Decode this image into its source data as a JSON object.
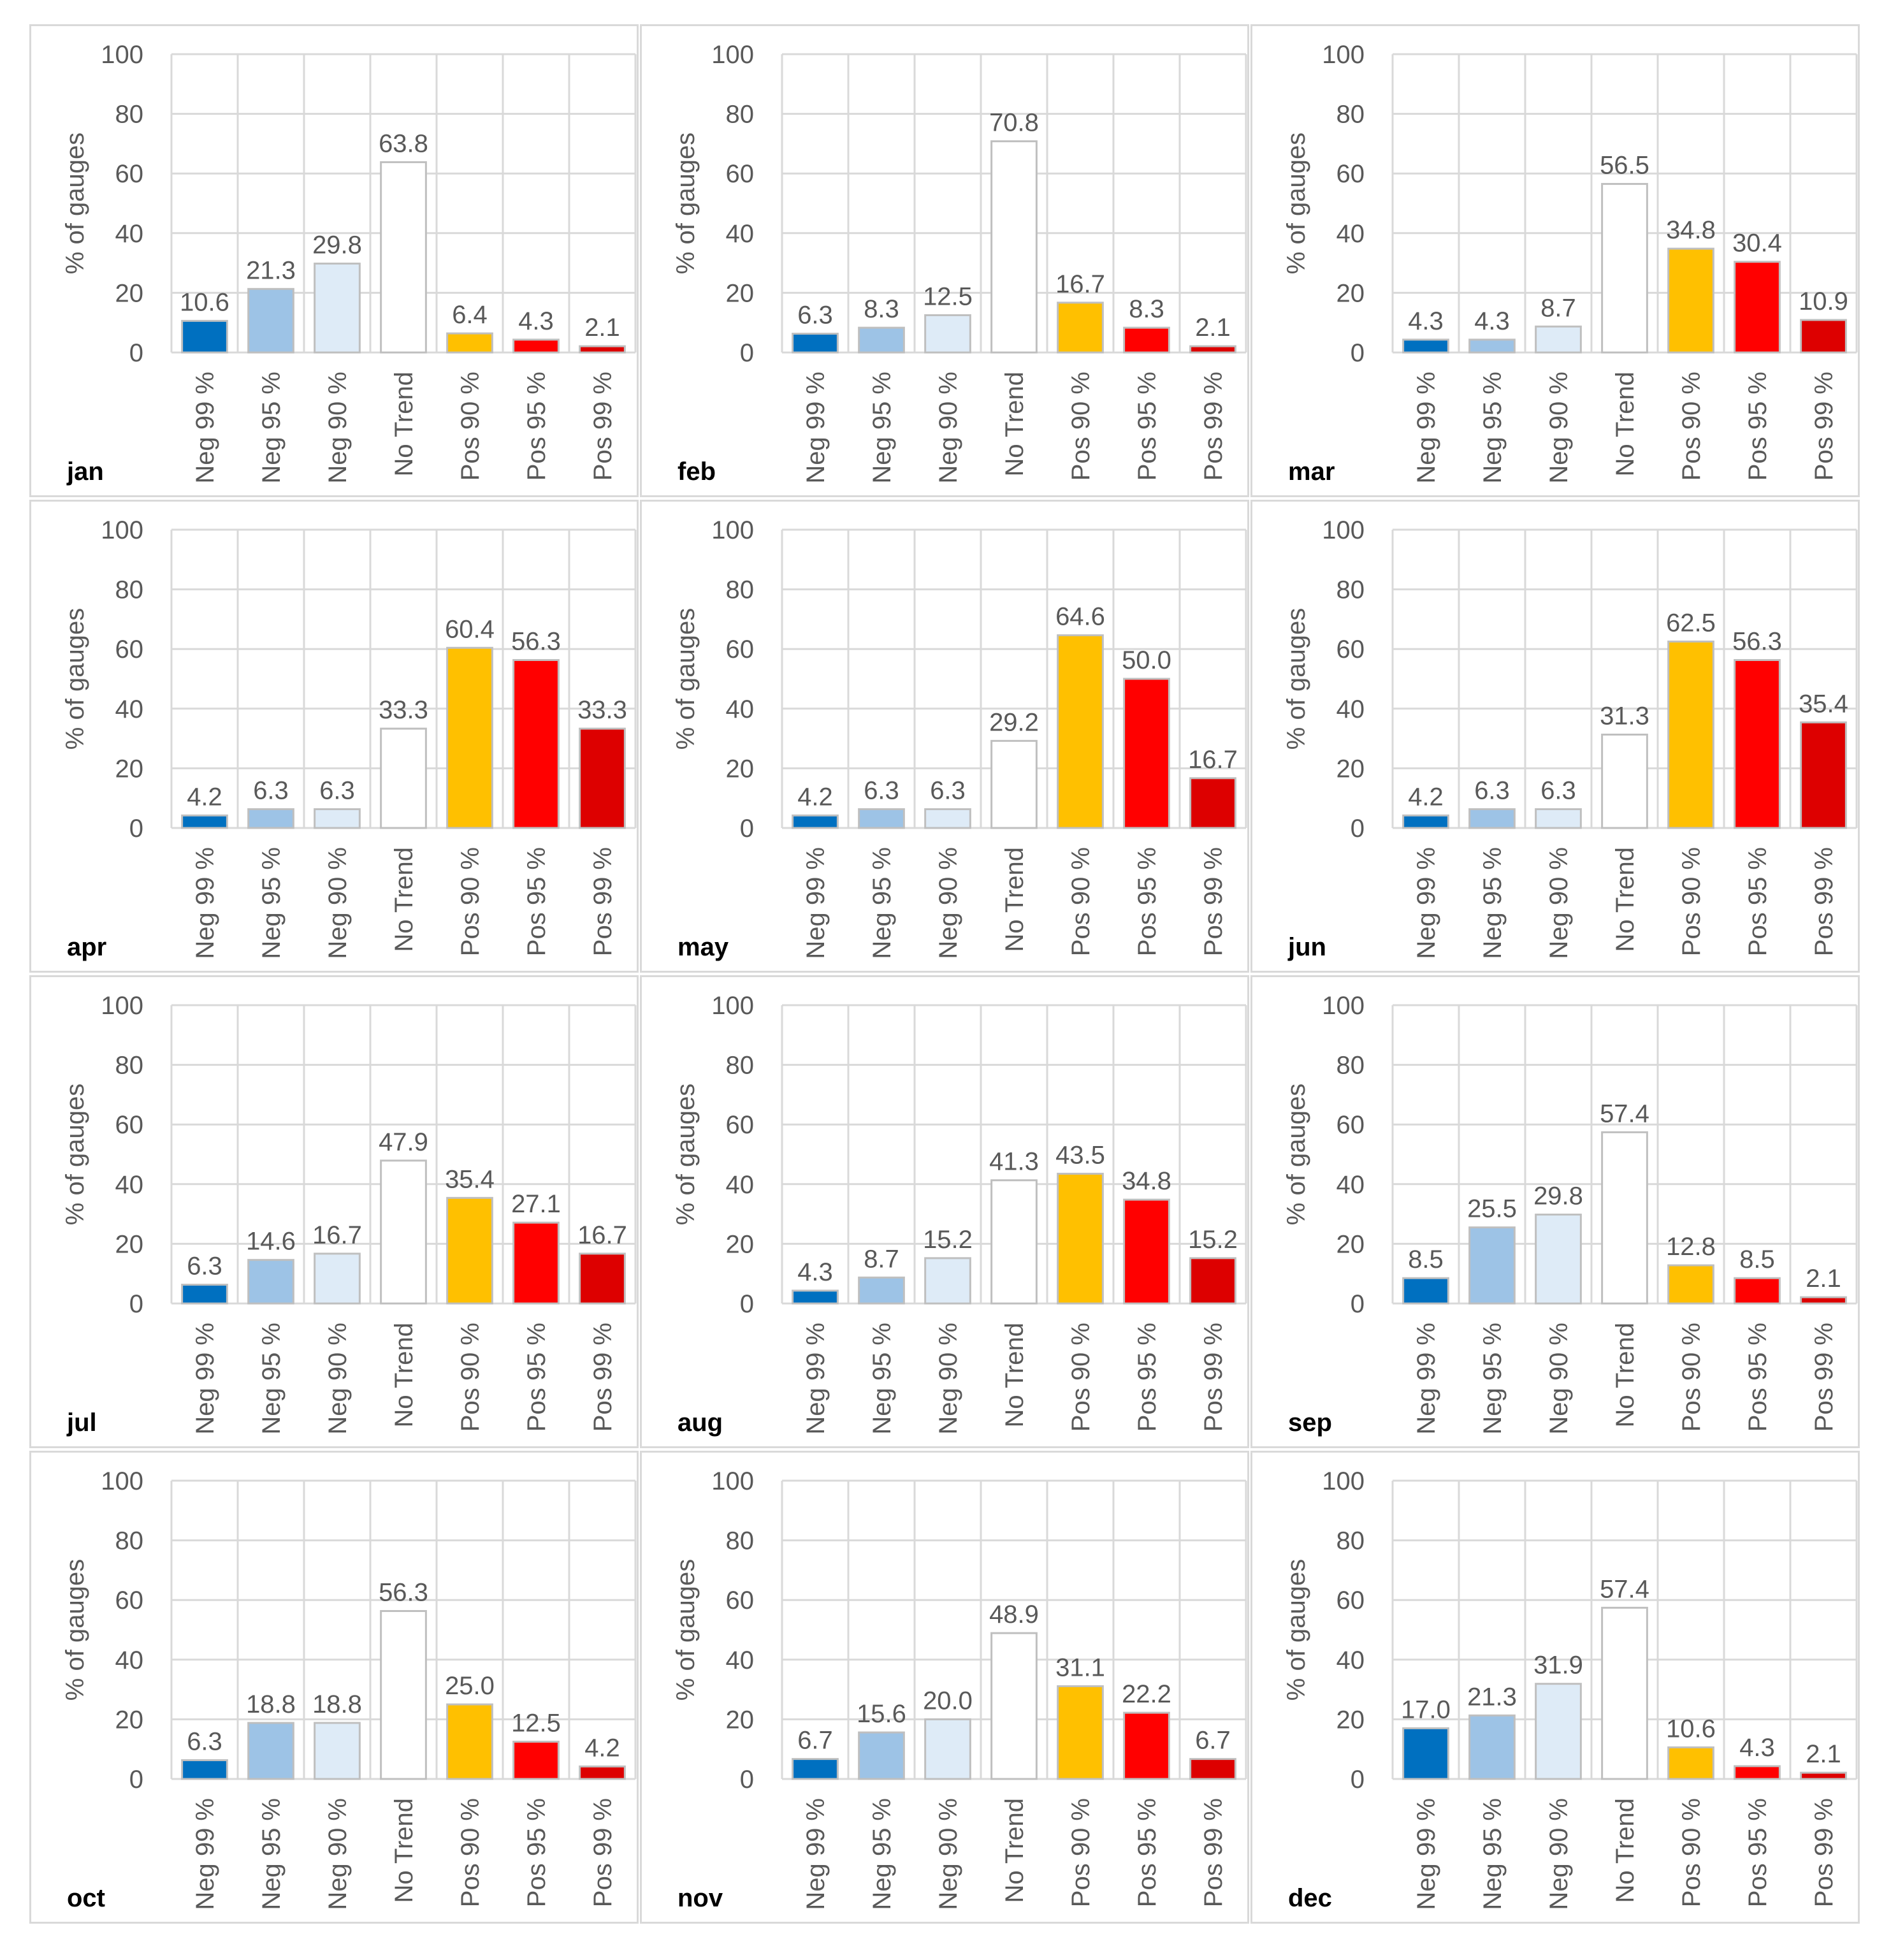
{
  "colors": {
    "Neg 99 %": "#0070c0",
    "Neg 95 %": "#9dc3e6",
    "Neg 90 %": "#deebf7",
    "No Trend": "#ffffff",
    "Pos 90 %": "#ffc000",
    "Pos 95 %": "#ff0000",
    "Pos 99 %": "#dd0000",
    "grid": "#d9d9d9",
    "bar_outline": "#bfbfbf",
    "text": "#595959"
  },
  "chart_data": [
    {
      "type": "bar",
      "title": "jan",
      "categories": [
        "Neg 99 %",
        "Neg 95 %",
        "Neg 90 %",
        "No Trend",
        "Pos 90 %",
        "Pos 95 %",
        "Pos 99 %"
      ],
      "values": [
        10.6,
        21.3,
        29.8,
        63.8,
        6.4,
        4.3,
        2.1
      ],
      "value_labels": [
        "10.6",
        "21.3",
        "29.8",
        "63.8",
        "6.4",
        "4.3",
        "2.1"
      ],
      "xlabel": "",
      "ylabel": "% of gauges",
      "ylim": [
        0,
        100
      ],
      "yticks": [
        "0",
        "20",
        "40",
        "60",
        "80",
        "100"
      ],
      "grid": true
    },
    {
      "type": "bar",
      "title": "feb",
      "categories": [
        "Neg 99 %",
        "Neg 95 %",
        "Neg 90 %",
        "No Trend",
        "Pos 90 %",
        "Pos 95 %",
        "Pos 99 %"
      ],
      "values": [
        6.3,
        8.3,
        12.5,
        70.8,
        16.7,
        8.3,
        2.1
      ],
      "value_labels": [
        "6.3",
        "8.3",
        "12.5",
        "70.8",
        "16.7",
        "8.3",
        "2.1"
      ],
      "xlabel": "",
      "ylabel": "% of gauges",
      "ylim": [
        0,
        100
      ],
      "yticks": [
        "0",
        "20",
        "40",
        "60",
        "80",
        "100"
      ],
      "grid": true
    },
    {
      "type": "bar",
      "title": "mar",
      "categories": [
        "Neg 99 %",
        "Neg 95 %",
        "Neg 90 %",
        "No Trend",
        "Pos 90 %",
        "Pos 95 %",
        "Pos 99 %"
      ],
      "values": [
        4.3,
        4.3,
        8.7,
        56.5,
        34.8,
        30.4,
        10.9
      ],
      "value_labels": [
        "4.3",
        "4.3",
        "8.7",
        "56.5",
        "34.8",
        "30.4",
        "10.9"
      ],
      "xlabel": "",
      "ylabel": "% of gauges",
      "ylim": [
        0,
        100
      ],
      "yticks": [
        "0",
        "20",
        "40",
        "60",
        "80",
        "100"
      ],
      "grid": true
    },
    {
      "type": "bar",
      "title": "apr",
      "categories": [
        "Neg 99 %",
        "Neg 95 %",
        "Neg 90 %",
        "No Trend",
        "Pos 90 %",
        "Pos 95 %",
        "Pos 99 %"
      ],
      "values": [
        4.2,
        6.3,
        6.3,
        33.3,
        60.4,
        56.3,
        33.3
      ],
      "value_labels": [
        "4.2",
        "6.3",
        "6.3",
        "33.3",
        "60.4",
        "56.3",
        "33.3"
      ],
      "xlabel": "",
      "ylabel": "% of gauges",
      "ylim": [
        0,
        100
      ],
      "yticks": [
        "0",
        "20",
        "40",
        "60",
        "80",
        "100"
      ],
      "grid": true
    },
    {
      "type": "bar",
      "title": "may",
      "categories": [
        "Neg 99 %",
        "Neg 95 %",
        "Neg 90 %",
        "No Trend",
        "Pos 90 %",
        "Pos 95 %",
        "Pos 99 %"
      ],
      "values": [
        4.2,
        6.3,
        6.3,
        29.2,
        64.6,
        50.0,
        16.7
      ],
      "value_labels": [
        "4.2",
        "6.3",
        "6.3",
        "29.2",
        "64.6",
        "50.0",
        "16.7"
      ],
      "xlabel": "",
      "ylabel": "% of gauges",
      "ylim": [
        0,
        100
      ],
      "yticks": [
        "0",
        "20",
        "40",
        "60",
        "80",
        "100"
      ],
      "grid": true
    },
    {
      "type": "bar",
      "title": "jun",
      "categories": [
        "Neg 99 %",
        "Neg 95 %",
        "Neg 90 %",
        "No Trend",
        "Pos 90 %",
        "Pos 95 %",
        "Pos 99 %"
      ],
      "values": [
        4.2,
        6.3,
        6.3,
        31.3,
        62.5,
        56.3,
        35.4
      ],
      "value_labels": [
        "4.2",
        "6.3",
        "6.3",
        "31.3",
        "62.5",
        "56.3",
        "35.4"
      ],
      "xlabel": "",
      "ylabel": "% of gauges",
      "ylim": [
        0,
        100
      ],
      "yticks": [
        "0",
        "20",
        "40",
        "60",
        "80",
        "100"
      ],
      "grid": true
    },
    {
      "type": "bar",
      "title": "jul",
      "categories": [
        "Neg 99 %",
        "Neg 95 %",
        "Neg 90 %",
        "No Trend",
        "Pos 90 %",
        "Pos 95 %",
        "Pos 99 %"
      ],
      "values": [
        6.3,
        14.6,
        16.7,
        47.9,
        35.4,
        27.1,
        16.7
      ],
      "value_labels": [
        "6.3",
        "14.6",
        "16.7",
        "47.9",
        "35.4",
        "27.1",
        "16.7"
      ],
      "xlabel": "",
      "ylabel": "% of gauges",
      "ylim": [
        0,
        100
      ],
      "yticks": [
        "0",
        "20",
        "40",
        "60",
        "80",
        "100"
      ],
      "grid": true
    },
    {
      "type": "bar",
      "title": "aug",
      "categories": [
        "Neg 99 %",
        "Neg 95 %",
        "Neg 90 %",
        "No Trend",
        "Pos 90 %",
        "Pos 95 %",
        "Pos 99 %"
      ],
      "values": [
        4.3,
        8.7,
        15.2,
        41.3,
        43.5,
        34.8,
        15.2
      ],
      "value_labels": [
        "4.3",
        "8.7",
        "15.2",
        "41.3",
        "43.5",
        "34.8",
        "15.2"
      ],
      "xlabel": "",
      "ylabel": "% of gauges",
      "ylim": [
        0,
        100
      ],
      "yticks": [
        "0",
        "20",
        "40",
        "60",
        "80",
        "100"
      ],
      "grid": true
    },
    {
      "type": "bar",
      "title": "sep",
      "categories": [
        "Neg 99 %",
        "Neg 95 %",
        "Neg 90 %",
        "No Trend",
        "Pos 90 %",
        "Pos 95 %",
        "Pos 99 %"
      ],
      "values": [
        8.5,
        25.5,
        29.8,
        57.4,
        12.8,
        8.5,
        2.1
      ],
      "value_labels": [
        "8.5",
        "25.5",
        "29.8",
        "57.4",
        "12.8",
        "8.5",
        "2.1"
      ],
      "xlabel": "",
      "ylabel": "% of gauges",
      "ylim": [
        0,
        100
      ],
      "yticks": [
        "0",
        "20",
        "40",
        "60",
        "80",
        "100"
      ],
      "grid": true
    },
    {
      "type": "bar",
      "title": "oct",
      "categories": [
        "Neg 99 %",
        "Neg 95 %",
        "Neg 90 %",
        "No Trend",
        "Pos 90 %",
        "Pos 95 %",
        "Pos 99 %"
      ],
      "values": [
        6.3,
        18.8,
        18.8,
        56.3,
        25.0,
        12.5,
        4.2
      ],
      "value_labels": [
        "6.3",
        "18.8",
        "18.8",
        "56.3",
        "25.0",
        "12.5",
        "4.2"
      ],
      "xlabel": "",
      "ylabel": "% of gauges",
      "ylim": [
        0,
        100
      ],
      "yticks": [
        "0",
        "20",
        "40",
        "60",
        "80",
        "100"
      ],
      "grid": true
    },
    {
      "type": "bar",
      "title": "nov",
      "categories": [
        "Neg 99 %",
        "Neg 95 %",
        "Neg 90 %",
        "No Trend",
        "Pos 90 %",
        "Pos 95 %",
        "Pos 99 %"
      ],
      "values": [
        6.7,
        15.6,
        20.0,
        48.9,
        31.1,
        22.2,
        6.7
      ],
      "value_labels": [
        "6.7",
        "15.6",
        "20.0",
        "48.9",
        "31.1",
        "22.2",
        "6.7"
      ],
      "xlabel": "",
      "ylabel": "% of gauges",
      "ylim": [
        0,
        100
      ],
      "yticks": [
        "0",
        "20",
        "40",
        "60",
        "80",
        "100"
      ],
      "grid": true
    },
    {
      "type": "bar",
      "title": "dec",
      "categories": [
        "Neg 99 %",
        "Neg 95 %",
        "Neg 90 %",
        "No Trend",
        "Pos 90 %",
        "Pos 95 %",
        "Pos 99 %"
      ],
      "values": [
        17.0,
        21.3,
        31.9,
        57.4,
        10.6,
        4.3,
        2.1
      ],
      "value_labels": [
        "17.0",
        "21.3",
        "31.9",
        "57.4",
        "10.6",
        "4.3",
        "2.1"
      ],
      "xlabel": "",
      "ylabel": "% of gauges",
      "ylim": [
        0,
        100
      ],
      "yticks": [
        "0",
        "20",
        "40",
        "60",
        "80",
        "100"
      ],
      "grid": true
    }
  ]
}
